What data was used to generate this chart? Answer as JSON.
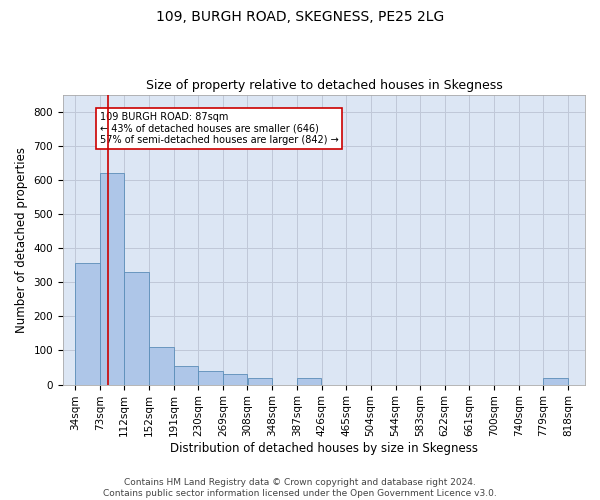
{
  "title1": "109, BURGH ROAD, SKEGNESS, PE25 2LG",
  "title2": "Size of property relative to detached houses in Skegness",
  "xlabel": "Distribution of detached houses by size in Skegness",
  "ylabel": "Number of detached properties",
  "footer1": "Contains HM Land Registry data © Crown copyright and database right 2024.",
  "footer2": "Contains public sector information licensed under the Open Government Licence v3.0.",
  "annotation_line1": "109 BURGH ROAD: 87sqm",
  "annotation_line2": "← 43% of detached houses are smaller (646)",
  "annotation_line3": "57% of semi-detached houses are larger (842) →",
  "bin_edges": [
    34,
    73,
    112,
    152,
    191,
    230,
    269,
    308,
    348,
    387,
    426,
    465,
    504,
    544,
    583,
    622,
    661,
    700,
    740,
    779,
    818
  ],
  "bin_labels": [
    "34sqm",
    "73sqm",
    "112sqm",
    "152sqm",
    "191sqm",
    "230sqm",
    "269sqm",
    "308sqm",
    "348sqm",
    "387sqm",
    "426sqm",
    "465sqm",
    "504sqm",
    "544sqm",
    "583sqm",
    "622sqm",
    "661sqm",
    "700sqm",
    "740sqm",
    "779sqm",
    "818sqm"
  ],
  "bar_heights": [
    355,
    620,
    330,
    110,
    55,
    40,
    30,
    18,
    0,
    18,
    0,
    0,
    0,
    0,
    0,
    0,
    0,
    0,
    0,
    18
  ],
  "bar_color": "#aec6e8",
  "bar_edge_color": "#5b8db8",
  "vline_x": 87,
  "vline_color": "#cc0000",
  "ylim": [
    0,
    850
  ],
  "yticks": [
    0,
    100,
    200,
    300,
    400,
    500,
    600,
    700,
    800
  ],
  "grid_color": "#c0c8d8",
  "bg_color": "#dce6f4",
  "annotation_box_color": "#cc0000",
  "title1_fontsize": 10,
  "title2_fontsize": 9,
  "xlabel_fontsize": 8.5,
  "ylabel_fontsize": 8.5,
  "tick_fontsize": 7.5,
  "footer_fontsize": 6.5
}
